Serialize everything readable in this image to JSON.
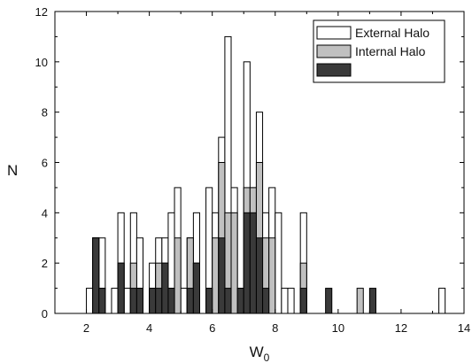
{
  "chart_data": {
    "type": "bar",
    "stacked_overlay": true,
    "bin_width": 0.2,
    "xlabel": "W",
    "xlabel_subscript": "0",
    "ylabel": "N",
    "xlim": [
      1,
      14
    ],
    "ylim": [
      0,
      12
    ],
    "xticks": [
      "2",
      "4",
      "6",
      "8",
      "10",
      "12",
      "14"
    ],
    "yticks": [
      "0",
      "2",
      "4",
      "6",
      "8",
      "10",
      "12"
    ],
    "legend_position": "top-right",
    "series": [
      {
        "name": "External Halo",
        "color": "#ffffff",
        "points": [
          [
            2.1,
            1
          ],
          [
            2.3,
            3
          ],
          [
            2.5,
            3
          ],
          [
            2.9,
            1
          ],
          [
            3.1,
            4
          ],
          [
            3.3,
            1
          ],
          [
            3.5,
            4
          ],
          [
            3.7,
            3
          ],
          [
            4.1,
            2
          ],
          [
            4.3,
            3
          ],
          [
            4.5,
            3
          ],
          [
            4.7,
            4
          ],
          [
            4.9,
            5
          ],
          [
            5.1,
            1
          ],
          [
            5.3,
            3
          ],
          [
            5.5,
            4
          ],
          [
            5.9,
            5
          ],
          [
            6.1,
            4
          ],
          [
            6.3,
            7
          ],
          [
            6.5,
            11
          ],
          [
            6.7,
            5
          ],
          [
            6.9,
            1
          ],
          [
            7.1,
            10
          ],
          [
            7.3,
            5
          ],
          [
            7.5,
            8
          ],
          [
            7.7,
            4
          ],
          [
            7.9,
            5
          ],
          [
            8.1,
            4
          ],
          [
            8.3,
            1
          ],
          [
            8.5,
            1
          ],
          [
            8.9,
            4
          ],
          [
            13.3,
            1
          ]
        ]
      },
      {
        "name": "Internal Halo",
        "color": "#c0c0c0",
        "points": [
          [
            2.3,
            3
          ],
          [
            2.5,
            1
          ],
          [
            3.1,
            2
          ],
          [
            3.5,
            2
          ],
          [
            3.7,
            1
          ],
          [
            4.1,
            1
          ],
          [
            4.3,
            2
          ],
          [
            4.5,
            2
          ],
          [
            4.7,
            1
          ],
          [
            4.9,
            3
          ],
          [
            5.3,
            3
          ],
          [
            5.5,
            2
          ],
          [
            5.9,
            1
          ],
          [
            6.1,
            3
          ],
          [
            6.3,
            6
          ],
          [
            6.5,
            4
          ],
          [
            6.7,
            4
          ],
          [
            7.1,
            5
          ],
          [
            7.3,
            5
          ],
          [
            7.5,
            6
          ],
          [
            7.7,
            3
          ],
          [
            7.9,
            3
          ],
          [
            8.9,
            2
          ],
          [
            10.7,
            1
          ]
        ]
      },
      {
        "name": "",
        "color": "#3a3a3a",
        "points": [
          [
            2.3,
            3
          ],
          [
            2.5,
            1
          ],
          [
            3.1,
            2
          ],
          [
            3.5,
            1
          ],
          [
            3.7,
            1
          ],
          [
            4.1,
            1
          ],
          [
            4.3,
            1
          ],
          [
            4.5,
            2
          ],
          [
            4.7,
            1
          ],
          [
            5.3,
            1
          ],
          [
            5.5,
            2
          ],
          [
            5.9,
            1
          ],
          [
            6.3,
            3
          ],
          [
            6.5,
            1
          ],
          [
            6.9,
            1
          ],
          [
            7.1,
            4
          ],
          [
            7.3,
            4
          ],
          [
            7.5,
            3
          ],
          [
            7.7,
            1
          ],
          [
            8.9,
            1
          ],
          [
            9.7,
            1
          ],
          [
            11.1,
            1
          ]
        ]
      }
    ]
  }
}
